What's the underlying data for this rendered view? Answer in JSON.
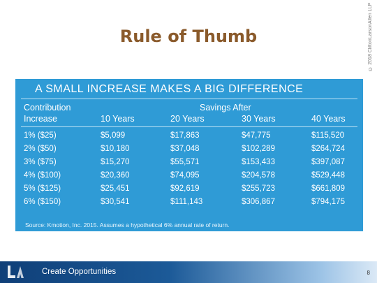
{
  "slide": {
    "title": "Rule of Thumb",
    "copyright": "© 2018 CliftonLarsonAllen LLP"
  },
  "panel": {
    "heading": "A SMALL INCREASE MAKES A BIG DIFFERENCE",
    "group_left": "Contribution",
    "group_right": "Savings After",
    "columns": [
      "Increase",
      "10 Years",
      "20 Years",
      "30 Years",
      "40 Years"
    ],
    "rows": [
      [
        "1% ($25)",
        "$5,099",
        "$17,863",
        "$47,775",
        "$115,520"
      ],
      [
        "2% ($50)",
        "$10,180",
        "$37,048",
        "$102,289",
        "$264,724"
      ],
      [
        "3% ($75)",
        "$15,270",
        "$55,571",
        "$153,433",
        "$397,087"
      ],
      [
        "4% ($100)",
        "$20,360",
        "$74,095",
        "$204,578",
        "$529,448"
      ],
      [
        "5% ($125)",
        "$25,451",
        "$92,619",
        "$255,723",
        "$661,809"
      ],
      [
        "6% ($150)",
        "$30,541",
        "$111,143",
        "$306,867",
        "$794,175"
      ]
    ],
    "source": "Source: Kmotion, Inc. 2015. Assumes a hypothetical 6% annual rate of return."
  },
  "footer": {
    "tagline": "Create Opportunities",
    "page_number": "8"
  },
  "colors": {
    "panel": "#2f9bd6",
    "title": "#8a5a2b",
    "footer": "#0f3f78"
  }
}
